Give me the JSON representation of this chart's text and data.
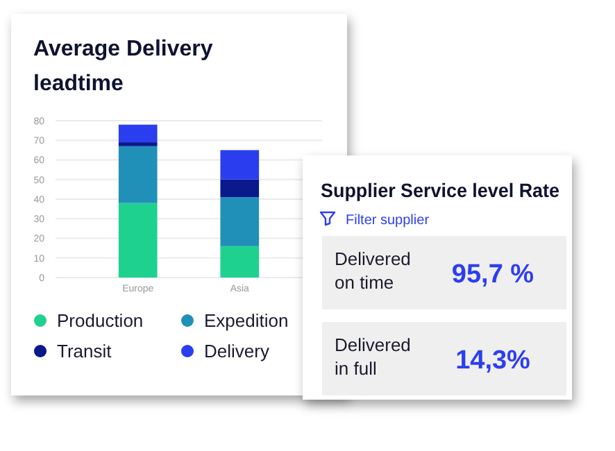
{
  "chart_data": [
    {
      "type": "bar",
      "title": "Average Delivery\nleadtime",
      "categories": [
        "Europe",
        "Asia"
      ],
      "stacked": true,
      "ylim": [
        0,
        80
      ],
      "yticks": [
        0,
        10,
        20,
        30,
        40,
        50,
        60,
        70,
        80
      ],
      "grid": "y",
      "legend": "bottom",
      "series": [
        {
          "name": "Production",
          "color": "#1fd18f",
          "values": [
            38,
            16
          ]
        },
        {
          "name": "Expedition",
          "color": "#2090b8",
          "values": [
            29,
            25
          ]
        },
        {
          "name": "Transit",
          "color": "#0a1a8c",
          "values": [
            2,
            9
          ]
        },
        {
          "name": "Delivery",
          "color": "#2a3ef0",
          "values": [
            9,
            15
          ]
        }
      ]
    },
    {
      "type": "other",
      "title": "Supplier Service level Rate",
      "annotations": [
        "Filter supplier",
        "Delivered\non time",
        "95,7 %",
        "Delivered\nin full",
        "14,3%"
      ]
    }
  ]
}
